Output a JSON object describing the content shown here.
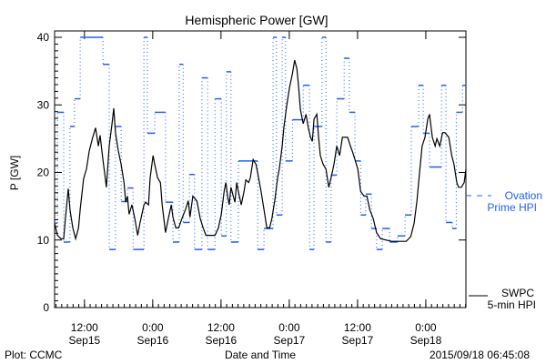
{
  "chart_data": {
    "type": "line",
    "title": "Hemispheric Power [GW]",
    "xlabel": "Date and Time",
    "ylabel": "P [GW]",
    "x_unit": "hours since 2015/09/15 06:45",
    "xlim": [
      0,
      72.3
    ],
    "ylim": [
      0,
      40
    ],
    "yticks": [
      0,
      10,
      20,
      30,
      40
    ],
    "xticks": [
      {
        "t": 5.25,
        "time": "12:00",
        "date": "Sep15"
      },
      {
        "t": 17.25,
        "time": "0:00",
        "date": "Sep16"
      },
      {
        "t": 29.25,
        "time": "12:00",
        "date": "Sep16"
      },
      {
        "t": 41.25,
        "time": "0:00",
        "date": "Sep17"
      },
      {
        "t": 53.25,
        "time": "12:00",
        "date": "Sep17"
      },
      {
        "t": 65.25,
        "time": "0:00",
        "date": "Sep18"
      }
    ],
    "grid": false,
    "series": [
      {
        "name": "SWPC 5-min HPI",
        "label_line1": "SWPC",
        "label_line2": "5-min HPI",
        "color": "#000000",
        "style": "solid",
        "points": [
          [
            0,
            12.5
          ],
          [
            0.5,
            10.7
          ],
          [
            1.1,
            10.2
          ],
          [
            1.6,
            10.2
          ],
          [
            1.9,
            13.2
          ],
          [
            2.4,
            17.6
          ],
          [
            2.7,
            14.5
          ],
          [
            3.2,
            11.8
          ],
          [
            3.7,
            10.2
          ],
          [
            4.2,
            11.8
          ],
          [
            4.5,
            14.5
          ],
          [
            5.1,
            19.1
          ],
          [
            5.6,
            20.5
          ],
          [
            6.1,
            23.2
          ],
          [
            6.7,
            25.2
          ],
          [
            7.2,
            26.6
          ],
          [
            7.7,
            23.9
          ],
          [
            8.0,
            25.5
          ],
          [
            8.5,
            21.9
          ],
          [
            8.8,
            19.9
          ],
          [
            9.1,
            17.8
          ],
          [
            9.6,
            23.9
          ],
          [
            10.1,
            27.2
          ],
          [
            10.4,
            29.5
          ],
          [
            10.7,
            25.9
          ],
          [
            11.2,
            23.2
          ],
          [
            11.7,
            21.2
          ],
          [
            12.2,
            18.5
          ],
          [
            12.5,
            15.6
          ],
          [
            12.8,
            16.5
          ],
          [
            13.1,
            13.8
          ],
          [
            13.6,
            15.2
          ],
          [
            14.1,
            13.2
          ],
          [
            14.6,
            10.7
          ],
          [
            15.0,
            12.5
          ],
          [
            15.7,
            15.2
          ],
          [
            16.0,
            15.6
          ],
          [
            16.5,
            15.2
          ],
          [
            16.8,
            19.2
          ],
          [
            17.3,
            22.5
          ],
          [
            17.6,
            21.2
          ],
          [
            18.1,
            19.2
          ],
          [
            18.6,
            18.5
          ],
          [
            18.9,
            15.2
          ],
          [
            19.2,
            13.2
          ],
          [
            19.5,
            11.1
          ],
          [
            20.0,
            13.2
          ],
          [
            20.5,
            15.2
          ],
          [
            20.8,
            13.4
          ],
          [
            21.3,
            11.8
          ],
          [
            21.8,
            11.8
          ],
          [
            22.4,
            13.2
          ],
          [
            23.0,
            14.5
          ],
          [
            23.5,
            15.8
          ],
          [
            23.8,
            13.4
          ],
          [
            24.3,
            16.5
          ],
          [
            25.0,
            15.8
          ],
          [
            25.6,
            13.2
          ],
          [
            26.1,
            11.8
          ],
          [
            26.6,
            10.7
          ],
          [
            28.2,
            10.7
          ],
          [
            28.8,
            11.8
          ],
          [
            29.3,
            13.8
          ],
          [
            29.8,
            17.2
          ],
          [
            30.1,
            18.5
          ],
          [
            30.4,
            16.5
          ],
          [
            30.7,
            15.2
          ],
          [
            31.0,
            17.8
          ],
          [
            31.4,
            16.5
          ],
          [
            31.7,
            15.6
          ],
          [
            32.0,
            18.5
          ],
          [
            32.3,
            17.2
          ],
          [
            32.8,
            15.2
          ],
          [
            33.3,
            17.2
          ],
          [
            33.6,
            18.9
          ],
          [
            34.1,
            18.5
          ],
          [
            34.4,
            19.2
          ],
          [
            34.9,
            21.9
          ],
          [
            35.4,
            21.2
          ],
          [
            35.7,
            19.9
          ],
          [
            36.0,
            18.5
          ],
          [
            36.3,
            17.2
          ],
          [
            36.8,
            14.5
          ],
          [
            37.3,
            11.8
          ],
          [
            37.8,
            11.8
          ],
          [
            38.2,
            13.2
          ],
          [
            38.7,
            15.8
          ],
          [
            39.2,
            19.2
          ],
          [
            39.5,
            20.5
          ],
          [
            40.0,
            23.9
          ],
          [
            40.3,
            26.6
          ],
          [
            40.8,
            29.9
          ],
          [
            41.3,
            32.6
          ],
          [
            41.8,
            34.6
          ],
          [
            42.2,
            36.6
          ],
          [
            42.6,
            35.3
          ],
          [
            42.9,
            32.6
          ],
          [
            43.2,
            29.3
          ],
          [
            43.7,
            27.2
          ],
          [
            44.2,
            28.6
          ],
          [
            44.6,
            26.6
          ],
          [
            45.0,
            25.2
          ],
          [
            45.3,
            24.6
          ],
          [
            45.6,
            27.9
          ],
          [
            46.1,
            28.6
          ],
          [
            46.4,
            25.2
          ],
          [
            46.7,
            22.5
          ],
          [
            47.2,
            21.2
          ],
          [
            47.7,
            20.5
          ],
          [
            48.2,
            17.8
          ],
          [
            48.6,
            19.2
          ],
          [
            49.1,
            21.2
          ],
          [
            49.6,
            23.9
          ],
          [
            50.1,
            22.5
          ],
          [
            50.6,
            25.2
          ],
          [
            51.5,
            25.2
          ],
          [
            52.0,
            23.9
          ],
          [
            52.3,
            23.2
          ],
          [
            52.8,
            21.9
          ],
          [
            53.3,
            20.5
          ],
          [
            53.8,
            17.2
          ],
          [
            54.4,
            16.5
          ],
          [
            54.9,
            16.5
          ],
          [
            55.4,
            14.5
          ],
          [
            56.0,
            13.2
          ],
          [
            56.6,
            11.1
          ],
          [
            57.3,
            10.2
          ],
          [
            59.2,
            9.8
          ],
          [
            61.8,
            9.8
          ],
          [
            62.6,
            10.5
          ],
          [
            63.2,
            12.5
          ],
          [
            63.7,
            15.8
          ],
          [
            64.2,
            20.5
          ],
          [
            64.6,
            23.9
          ],
          [
            65.1,
            25.2
          ],
          [
            65.6,
            27.9
          ],
          [
            65.9,
            28.6
          ],
          [
            66.4,
            25.2
          ],
          [
            66.9,
            23.9
          ],
          [
            67.2,
            25.0
          ],
          [
            67.7,
            23.9
          ],
          [
            68.2,
            25.9
          ],
          [
            68.6,
            25.9
          ],
          [
            69.3,
            25.2
          ],
          [
            69.8,
            22.5
          ],
          [
            70.2,
            21.2
          ],
          [
            70.7,
            18.5
          ],
          [
            71.0,
            17.8
          ],
          [
            71.5,
            17.8
          ],
          [
            72.0,
            18.5
          ],
          [
            72.3,
            20.5
          ]
        ]
      },
      {
        "name": "Ovation Prime HPI",
        "label_line1": "Ovation",
        "label_line2": "Prime HPI",
        "color": "#1f5fff",
        "style": "step-dotted",
        "steps": [
          [
            0,
            12.5
          ],
          [
            0.5,
            28.9
          ],
          [
            1.6,
            9.7
          ],
          [
            2.7,
            26.8
          ],
          [
            3.5,
            30.9
          ],
          [
            4.5,
            40
          ],
          [
            6.4,
            40
          ],
          [
            8.5,
            36
          ],
          [
            9.6,
            8.6
          ],
          [
            10.7,
            26.8
          ],
          [
            11.7,
            15.7
          ],
          [
            12.8,
            17.7
          ],
          [
            13.8,
            8.6
          ],
          [
            15.7,
            40
          ],
          [
            16.3,
            25.8
          ],
          [
            17.6,
            28.9
          ],
          [
            19.5,
            15.6
          ],
          [
            20.8,
            9.7
          ],
          [
            21.9,
            36
          ],
          [
            22.6,
            12.6
          ],
          [
            23.7,
            19.7
          ],
          [
            24.6,
            8.6
          ],
          [
            25.9,
            34
          ],
          [
            26.9,
            8.6
          ],
          [
            28.2,
            30.9
          ],
          [
            29.3,
            10.6
          ],
          [
            30.2,
            34.9
          ],
          [
            31.0,
            9.7
          ],
          [
            32.3,
            21.7
          ],
          [
            35.7,
            8.6
          ],
          [
            36.8,
            11.7
          ],
          [
            38.4,
            40
          ],
          [
            39.0,
            13.7
          ],
          [
            40.0,
            40
          ],
          [
            40.6,
            21.7
          ],
          [
            41.8,
            27.8
          ],
          [
            43.7,
            32.9
          ],
          [
            44.8,
            8.6
          ],
          [
            45.6,
            26.8
          ],
          [
            47.0,
            40
          ],
          [
            47.7,
            9.7
          ],
          [
            48.6,
            19.6
          ],
          [
            49.6,
            30.9
          ],
          [
            50.9,
            36.9
          ],
          [
            51.8,
            28.9
          ],
          [
            52.8,
            21.7
          ],
          [
            53.8,
            13.7
          ],
          [
            54.7,
            16.8
          ],
          [
            55.7,
            11.7
          ],
          [
            56.6,
            8.6
          ],
          [
            57.6,
            11.7
          ],
          [
            58.9,
            9.7
          ],
          [
            60.3,
            10.6
          ],
          [
            61.6,
            13.7
          ],
          [
            62.7,
            26.8
          ],
          [
            64.0,
            32.9
          ],
          [
            64.8,
            25.8
          ],
          [
            65.9,
            20.8
          ],
          [
            68.0,
            32.9
          ],
          [
            68.8,
            12.6
          ],
          [
            69.9,
            11.7
          ],
          [
            70.6,
            28.9
          ],
          [
            71.7,
            32.9
          ]
        ]
      }
    ],
    "legend": "right",
    "footer_left": "Plot: CCMC",
    "footer_right": "2015/09/18 06:45:08"
  }
}
